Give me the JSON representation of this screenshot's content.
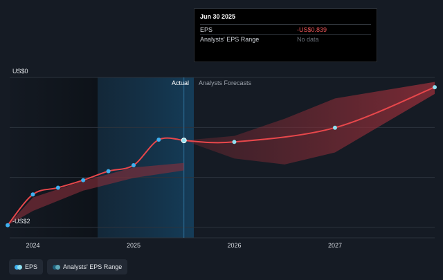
{
  "tooltip": {
    "date": "Jun 30 2025",
    "rows": [
      {
        "label": "EPS",
        "value": "-US$0.839"
      },
      {
        "label": "Analysts' EPS Range",
        "value": "No data"
      }
    ]
  },
  "sections": {
    "actual": "Actual",
    "forecast": "Analysts Forecasts"
  },
  "legend": {
    "eps": "EPS",
    "range": "Analysts' EPS Range"
  },
  "colors": {
    "background": "#151b24",
    "eps_line": "#e8474b",
    "eps_marker_actual": "#3fb0f0",
    "eps_marker_forecast": "#8fe0f0",
    "range_fill": "#7a2a33",
    "highlight": "#13344a"
  },
  "chart_data": {
    "type": "line",
    "ylim": [
      -2,
      0
    ],
    "yticks": [
      {
        "value": 0,
        "label": "US$0"
      },
      {
        "value": -2,
        "label": "-US$2"
      }
    ],
    "xlim": [
      2023.77,
      2027.99
    ],
    "xticks": [
      {
        "value": 2024,
        "label": "2024"
      },
      {
        "value": 2025,
        "label": "2025"
      },
      {
        "value": 2026,
        "label": "2026"
      },
      {
        "value": 2027,
        "label": "2027"
      }
    ],
    "actual_until": 2025.5,
    "highlight_from": 2024.5,
    "series": [
      {
        "name": "EPS",
        "actual": [
          [
            2023.75,
            -1.97
          ],
          [
            2024.0,
            -1.56
          ],
          [
            2024.25,
            -1.47
          ],
          [
            2024.5,
            -1.37
          ],
          [
            2024.75,
            -1.25
          ],
          [
            2025.0,
            -1.17
          ],
          [
            2025.25,
            -0.83
          ],
          [
            2025.5,
            -0.84
          ]
        ],
        "forecast": [
          [
            2025.5,
            -0.84
          ],
          [
            2026.0,
            -0.86
          ],
          [
            2027.0,
            -0.67
          ],
          [
            2027.99,
            -0.13
          ]
        ]
      }
    ],
    "range": {
      "past_upper": [
        [
          2023.75,
          -1.97
        ],
        [
          2024.0,
          -1.6
        ],
        [
          2024.5,
          -1.38
        ],
        [
          2025.0,
          -1.2
        ],
        [
          2025.5,
          -1.14
        ]
      ],
      "past_lower": [
        [
          2023.75,
          -1.97
        ],
        [
          2024.0,
          -1.78
        ],
        [
          2024.5,
          -1.51
        ],
        [
          2025.0,
          -1.34
        ],
        [
          2025.5,
          -1.24
        ]
      ],
      "future_upper": [
        [
          2025.5,
          -0.84
        ],
        [
          2026.0,
          -0.78
        ],
        [
          2026.5,
          -0.55
        ],
        [
          2027.0,
          -0.28
        ],
        [
          2027.99,
          -0.06
        ]
      ],
      "future_lower": [
        [
          2025.5,
          -0.84
        ],
        [
          2026.0,
          -1.08
        ],
        [
          2026.5,
          -1.16
        ],
        [
          2027.0,
          -1.0
        ],
        [
          2027.99,
          -0.22
        ]
      ]
    }
  }
}
